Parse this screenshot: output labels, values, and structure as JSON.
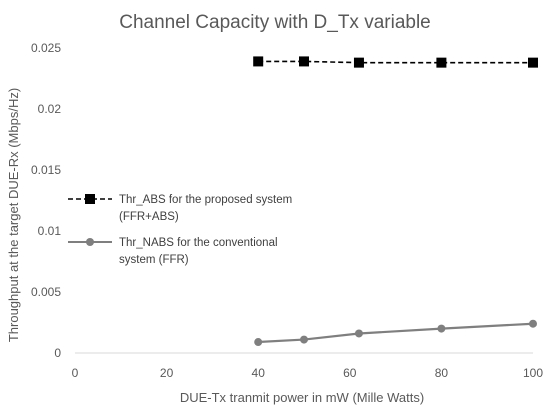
{
  "chart_data": {
    "type": "line",
    "title": "Channel Capacity with D_Tx variable",
    "xlabel": "DUE-Tx tranmit power in mW (Mille Watts)",
    "ylabel": "Throughput at the target DUE-Rx (Mbps/Hz)",
    "xlim": [
      0,
      100
    ],
    "ylim": [
      0,
      0.025
    ],
    "xticks": [
      0,
      20,
      40,
      60,
      80,
      100
    ],
    "yticks": [
      0,
      0.005,
      0.01,
      0.015,
      0.02,
      0.025
    ],
    "xtick_labels": [
      "0",
      "20",
      "40",
      "60",
      "80",
      "100"
    ],
    "ytick_labels": [
      "0",
      "0.005",
      "0.01",
      "0.015",
      "0.02",
      "0.025"
    ],
    "grid": false,
    "legend_position": "left-middle",
    "series": [
      {
        "name_lines": [
          "Thr_ABS for the proposed system",
          "(FFR+ABS)"
        ],
        "x": [
          40,
          50,
          62,
          80,
          100
        ],
        "y": [
          0.0239,
          0.0239,
          0.0238,
          0.0238,
          0.0238
        ],
        "color": "#000000",
        "marker": "square",
        "line_style": "dashed"
      },
      {
        "name_lines": [
          "Thr_NABS for the conventional",
          "system (FFR)"
        ],
        "x": [
          40,
          50,
          62,
          80,
          100
        ],
        "y": [
          0.0009,
          0.0011,
          0.0016,
          0.002,
          0.0024
        ],
        "color": "#7f7f7f",
        "marker": "circle",
        "line_style": "solid"
      }
    ]
  }
}
